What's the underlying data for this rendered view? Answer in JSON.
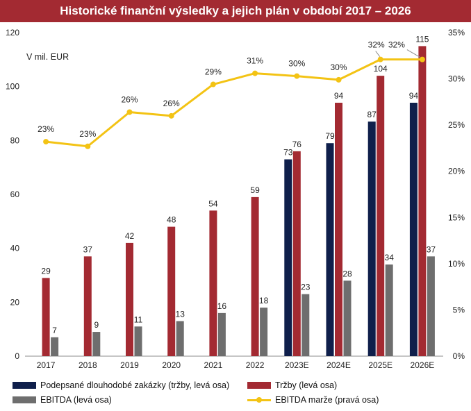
{
  "title": "Historické finanční výsledky a jejich plán v období 2017 – 2026",
  "unit_label": "V mil. EUR",
  "colors": {
    "title_bg": "#a32a32",
    "backlog": "#0f1f4b",
    "revenue": "#a32a32",
    "ebitda": "#6e6e6e",
    "margin": "#f3c314"
  },
  "legend": {
    "backlog": "Podepsané dlouhodobé zakázky (tržby, levá osa)",
    "revenue": "Tržby (levá osa)",
    "ebitda": "EBITDA (levá osa)",
    "margin": "EBITDA marže (pravá osa)"
  },
  "chart_data": {
    "type": "bar",
    "categories": [
      "2017",
      "2018",
      "2019",
      "2020",
      "2021",
      "2022",
      "2023E",
      "2024E",
      "2025E",
      "2026E"
    ],
    "series": [
      {
        "name": "Podepsané dlouhodobé zakázky (tržby, levá osa)",
        "axis": "left",
        "values": [
          null,
          null,
          null,
          null,
          null,
          null,
          73,
          79,
          87,
          94
        ]
      },
      {
        "name": "Tržby (levá osa)",
        "axis": "left",
        "values": [
          29,
          37,
          42,
          48,
          54,
          59,
          76,
          94,
          104,
          115
        ]
      },
      {
        "name": "EBITDA (levá osa)",
        "axis": "left",
        "values": [
          7,
          9,
          11,
          13,
          16,
          18,
          23,
          28,
          34,
          37
        ]
      },
      {
        "name": "EBITDA marže (pravá osa)",
        "axis": "right",
        "type": "line",
        "values": [
          23.2,
          22.7,
          26.4,
          26.0,
          29.4,
          30.6,
          30.3,
          29.9,
          32.1,
          32.1
        ]
      }
    ],
    "margin_labels": [
      "23%",
      "23%",
      "26%",
      "26%",
      "29%",
      "31%",
      "30%",
      "30%",
      "32%",
      "32%"
    ],
    "left_axis": {
      "min": 0,
      "max": 120,
      "ticks": [
        "0",
        "20",
        "40",
        "60",
        "80",
        "100",
        "120"
      ]
    },
    "right_axis": {
      "min": 0,
      "max": 35,
      "ticks": [
        "0%",
        "5%",
        "10%",
        "15%",
        "20%",
        "25%",
        "30%",
        "35%"
      ]
    },
    "grid": false,
    "legend_position": "bottom"
  }
}
